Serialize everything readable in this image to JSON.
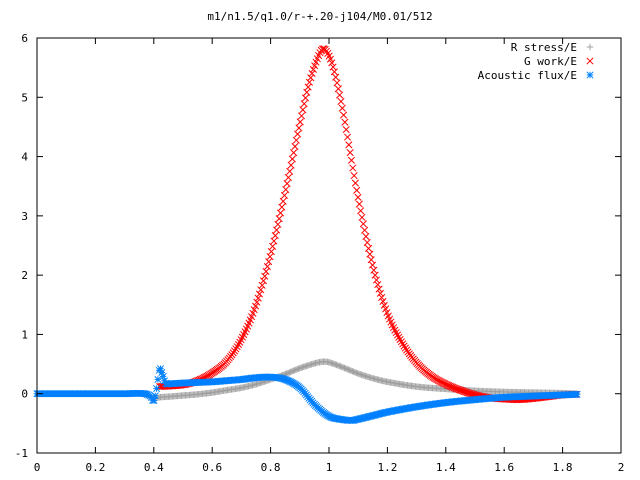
{
  "chart_data": {
    "type": "scatter",
    "title": "m1/n1.5/q1.0/r-+.20-j104/M0.01/512",
    "xlabel": "",
    "ylabel": "",
    "xlim": [
      0,
      2
    ],
    "ylim": [
      -1,
      6
    ],
    "xticks": [
      "0",
      "0.2",
      "0.4",
      "0.6",
      "0.8",
      "1",
      "1.2",
      "1.4",
      "1.6",
      "1.8",
      "2"
    ],
    "yticks": [
      "-1",
      "0",
      "1",
      "2",
      "3",
      "4",
      "5",
      "6"
    ],
    "legend_position": "top-right",
    "grid": false,
    "series": [
      {
        "name": "R stress/E",
        "color": "#a0a0a0",
        "marker": "plus",
        "x": [
          0.0,
          0.1,
          0.2,
          0.3,
          0.37,
          0.4,
          0.42,
          0.45,
          0.5,
          0.55,
          0.6,
          0.65,
          0.7,
          0.75,
          0.8,
          0.85,
          0.9,
          0.95,
          0.98,
          1.0,
          1.05,
          1.1,
          1.15,
          1.2,
          1.3,
          1.4,
          1.5,
          1.6,
          1.7,
          1.8,
          1.85
        ],
        "y": [
          0.0,
          0.0,
          0.0,
          0.0,
          0.0,
          -0.08,
          -0.06,
          -0.05,
          -0.03,
          -0.01,
          0.02,
          0.06,
          0.1,
          0.16,
          0.24,
          0.33,
          0.43,
          0.51,
          0.54,
          0.53,
          0.44,
          0.34,
          0.26,
          0.2,
          0.12,
          0.08,
          0.05,
          0.03,
          0.02,
          0.01,
          0.0
        ]
      },
      {
        "name": "G work/E",
        "color": "#ff0000",
        "marker": "cross",
        "x": [
          0.42,
          0.5,
          0.55,
          0.6,
          0.65,
          0.7,
          0.75,
          0.8,
          0.85,
          0.9,
          0.93,
          0.96,
          0.98,
          1.0,
          1.02,
          1.05,
          1.1,
          1.15,
          1.2,
          1.25,
          1.3,
          1.35,
          1.4,
          1.45,
          1.5,
          1.55,
          1.6,
          1.65,
          1.7,
          1.75,
          1.8,
          1.85
        ],
        "y": [
          0.12,
          0.15,
          0.22,
          0.35,
          0.55,
          0.92,
          1.5,
          2.35,
          3.4,
          4.55,
          5.2,
          5.65,
          5.82,
          5.7,
          5.4,
          4.7,
          3.3,
          2.15,
          1.35,
          0.86,
          0.52,
          0.3,
          0.16,
          0.06,
          -0.02,
          -0.07,
          -0.09,
          -0.1,
          -0.08,
          -0.05,
          -0.02,
          -0.01
        ]
      },
      {
        "name": "Acoustic flux/E",
        "color": "#0080ff",
        "marker": "star",
        "x": [
          0.0,
          0.1,
          0.2,
          0.3,
          0.37,
          0.39,
          0.4,
          0.41,
          0.42,
          0.43,
          0.44,
          0.46,
          0.5,
          0.55,
          0.6,
          0.65,
          0.7,
          0.75,
          0.8,
          0.85,
          0.9,
          0.95,
          1.0,
          1.05,
          1.08,
          1.1,
          1.15,
          1.2,
          1.3,
          1.4,
          1.5,
          1.6,
          1.7,
          1.8,
          1.85
        ],
        "y": [
          0.0,
          0.0,
          0.0,
          0.0,
          0.0,
          -0.05,
          -0.12,
          0.1,
          0.42,
          0.32,
          0.18,
          0.17,
          0.18,
          0.19,
          0.2,
          0.22,
          0.24,
          0.27,
          0.28,
          0.24,
          0.1,
          -0.18,
          -0.38,
          -0.44,
          -0.45,
          -0.43,
          -0.37,
          -0.31,
          -0.22,
          -0.15,
          -0.1,
          -0.06,
          -0.04,
          -0.02,
          -0.01
        ]
      }
    ]
  }
}
